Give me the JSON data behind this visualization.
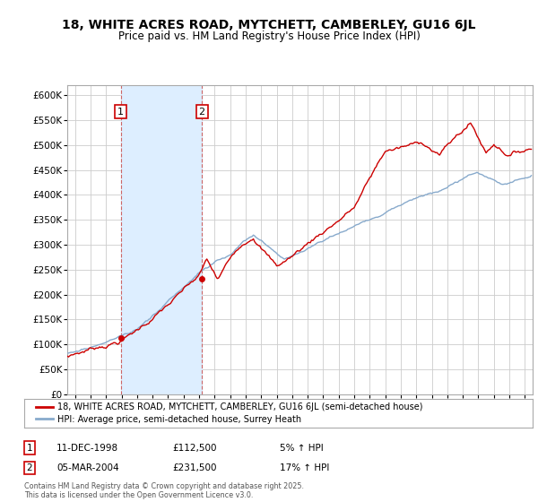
{
  "title": "18, WHITE ACRES ROAD, MYTCHETT, CAMBERLEY, GU16 6JL",
  "subtitle": "Price paid vs. HM Land Registry's House Price Index (HPI)",
  "ylim": [
    0,
    620000
  ],
  "xlim_start": 1995.5,
  "xlim_end": 2025.5,
  "purchase1": {
    "date": "11-DEC-1998",
    "price": 112500,
    "label": "1",
    "x": 1998.95,
    "pct": "5% ↑ HPI"
  },
  "purchase2": {
    "date": "05-MAR-2004",
    "price": 231500,
    "label": "2",
    "x": 2004.18,
    "pct": "17% ↑ HPI"
  },
  "line_color_house": "#cc0000",
  "line_color_hpi": "#88aacc",
  "legend_label_house": "18, WHITE ACRES ROAD, MYTCHETT, CAMBERLEY, GU16 6JL (semi-detached house)",
  "legend_label_hpi": "HPI: Average price, semi-detached house, Surrey Heath",
  "footer": "Contains HM Land Registry data © Crown copyright and database right 2025.\nThis data is licensed under the Open Government Licence v3.0.",
  "grid_color": "#cccccc",
  "bg_color": "#ffffff",
  "shaded_region_color": "#ddeeff",
  "annotation_box_color": "#ffffff",
  "annotation_box_edge": "#cc0000"
}
